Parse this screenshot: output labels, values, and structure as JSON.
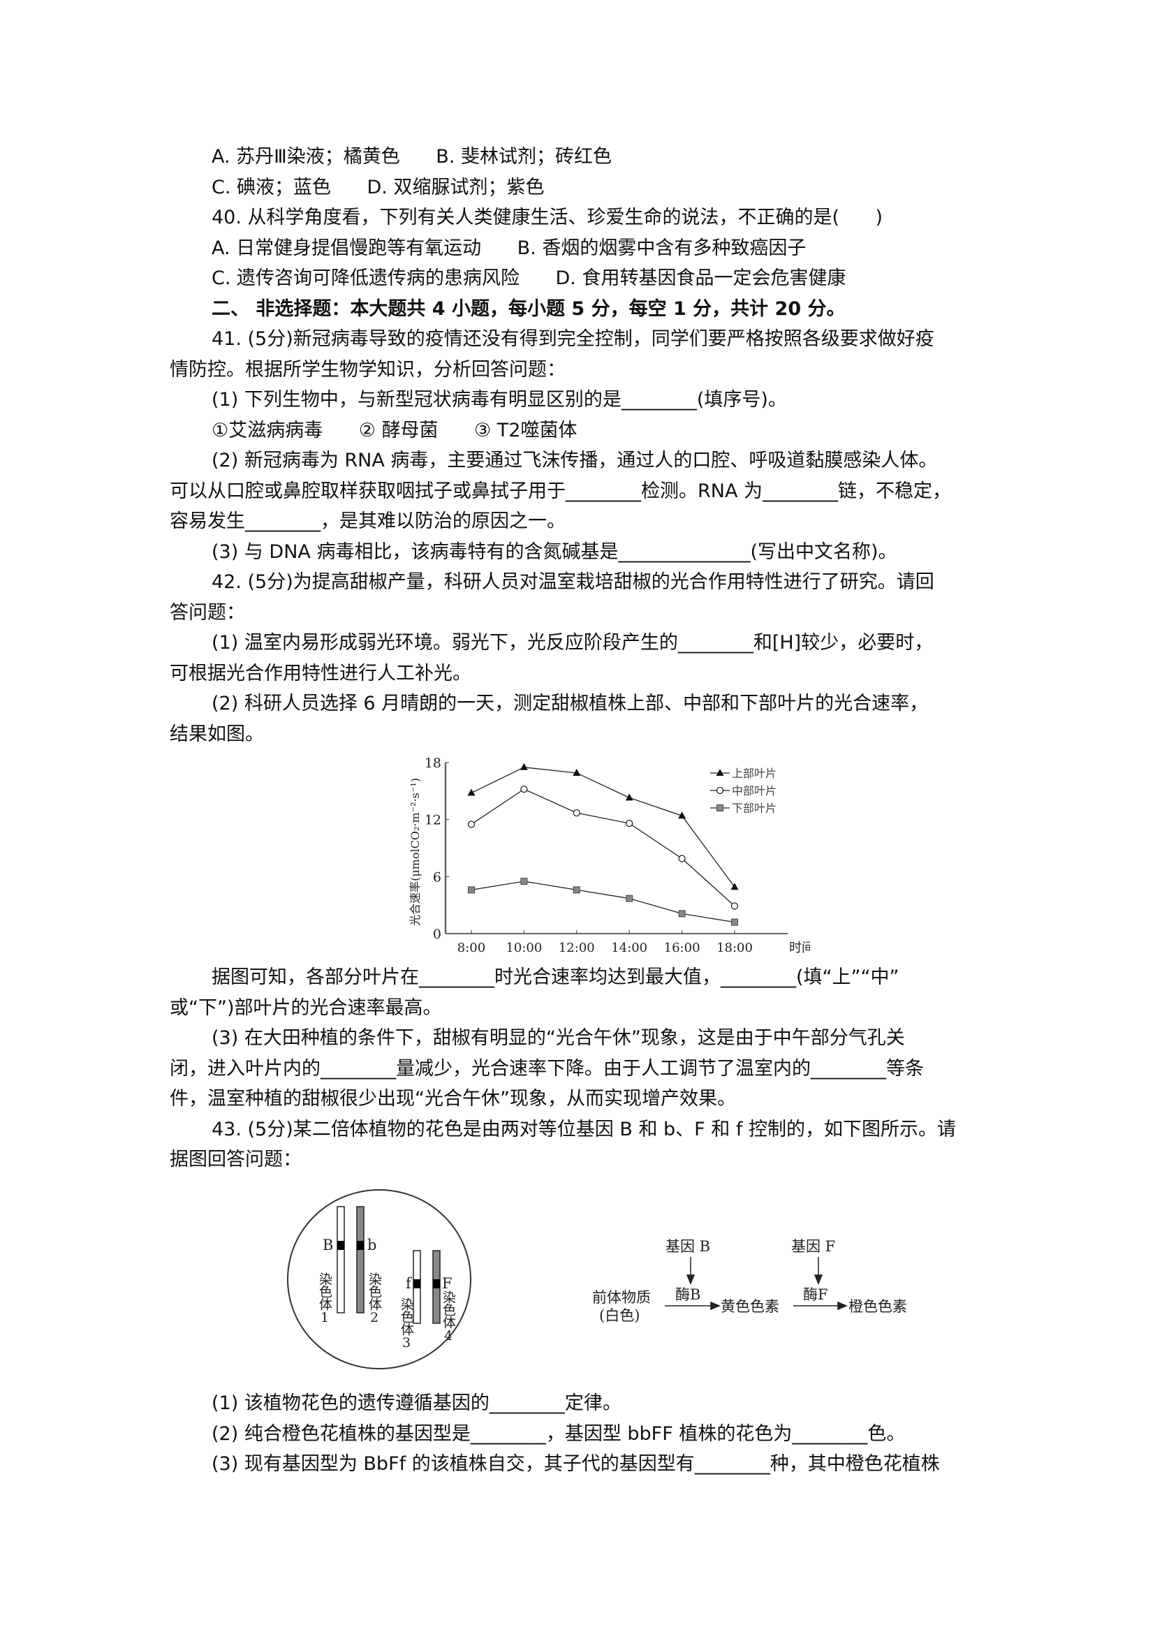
{
  "lines_block1": [
    {
      "text": "A. 苏丹Ⅲ染液；橘黄色      B. 斐林试剂；砖红色",
      "indent": true
    },
    {
      "text": "C. 碘液；蓝色      D. 双缩脲试剂；紫色",
      "indent": true
    },
    {
      "text": "40. 从科学角度看，下列有关人类健康生活、珍爱生命的说法，不正确的是(      )",
      "indent": true
    },
    {
      "text": "A. 日常健身提倡慢跑等有氧运动      B. 香烟的烟雾中含有多种致癌因子",
      "indent": true
    },
    {
      "text": "C. 遗传咨询可降低遗传病的患病风险      D. 食用转基因食品一定会危害健康",
      "indent": true
    },
    {
      "text": "二、 非选择题：本大题共 4 小题，每小题 5 分，每空 1 分，共计 20 分。",
      "indent": true,
      "bold": true
    },
    {
      "text": "41. (5分)新冠病毒导致的疫情还没有得到完全控制，同学们要严格按照各级要求做好疫",
      "indent": true
    },
    {
      "text": "情防控。根据所学生物学知识，分析回答问题：",
      "indent": false
    },
    {
      "text": "(1) 下列生物中，与新型冠状病毒有明显区别的是________(填序号)。",
      "indent": true
    },
    {
      "text": "①艾滋病病毒      ② 酵母菌      ③ T2噬菌体",
      "indent": true
    },
    {
      "text": "(2) 新冠病毒为 RNA 病毒，主要通过飞沫传播，通过人的口腔、呼吸道黏膜感染人体。",
      "indent": true
    },
    {
      "text": "可以从口腔或鼻腔取样获取咽拭子或鼻拭子用于________检测。RNA 为________链，不稳定，",
      "indent": false
    },
    {
      "text": "容易发生________，是其难以防治的原因之一。",
      "indent": false
    },
    {
      "text": "(3) 与 DNA 病毒相比，该病毒特有的含氮碱基是______________(写出中文名称)。",
      "indent": true
    },
    {
      "text": "42. (5分)为提高甜椒产量，科研人员对温室栽培甜椒的光合作用特性进行了研究。请回",
      "indent": true
    },
    {
      "text": "答问题：",
      "indent": false
    },
    {
      "text": "(1) 温室内易形成弱光环境。弱光下，光反应阶段产生的________和[H]较少，必要时，",
      "indent": true
    },
    {
      "text": "可根据光合作用特性进行人工补光。",
      "indent": false
    },
    {
      "text": "(2) 科研人员选择 6 月晴朗的一天，测定甜椒植株上部、中部和下部叶片的光合速率，",
      "indent": true
    },
    {
      "text": "结果如图。",
      "indent": false
    }
  ],
  "lines_block2": [
    {
      "text": "据图可知，各部分叶片在________时光合速率均达到最大值，________(填“上”“中”",
      "indent": true
    },
    {
      "text": "或“下”)部叶片的光合速率最高。",
      "indent": false
    },
    {
      "text": "(3) 在大田种植的条件下，甜椒有明显的“光合午休”现象，这是由于中午部分气孔关",
      "indent": true
    },
    {
      "text": "闭，进入叶片内的________量减少，光合速率下降。由于人工调节了温室内的________等条",
      "indent": false
    },
    {
      "text": "件，温室种植的甜椒很少出现“光合午休”现象，从而实现增产效果。",
      "indent": false
    },
    {
      "text": "43. (5分)某二倍体植物的花色是由两对等位基因 B 和 b、F 和 f 控制的，如下图所示。请",
      "indent": true
    },
    {
      "text": "据图回答问题：",
      "indent": false
    }
  ],
  "lines_block3": [
    {
      "text": "(1) 该植物花色的遗传遵循基因的________定律。",
      "indent": true
    },
    {
      "text": "(2) 纯合橙色花植株的基因型是________，基因型 bbFF 植株的花色为________色。",
      "indent": true
    },
    {
      "text": "(3) 现有基因型为 BbFf 的该植株自交，其子代的基因型有________种，其中橙色花植株",
      "indent": true
    }
  ],
  "chart_data": {
    "type": "line",
    "ylabel": "光合速率(μmolCO₂·m⁻²·s⁻¹)",
    "xlabel": "时间",
    "categories": [
      "8:00",
      "10:00",
      "12:00",
      "14:00",
      "16:00",
      "18:00"
    ],
    "yticks": [
      "0",
      "6",
      "12",
      "18"
    ],
    "ylim": [
      0,
      18
    ],
    "grid": false,
    "legend_position": "top-right",
    "series": [
      {
        "name": "上部叶片",
        "marker": "filled-triangle",
        "values": [
          14.8,
          17.5,
          16.9,
          14.3,
          12.4,
          4.9
        ]
      },
      {
        "name": "中部叶片",
        "marker": "open-circle",
        "values": [
          11.5,
          15.2,
          12.7,
          11.6,
          7.9,
          2.9
        ]
      },
      {
        "name": "下部叶片",
        "marker": "gray-square",
        "values": [
          4.6,
          5.5,
          4.6,
          3.7,
          2.1,
          1.2
        ]
      }
    ]
  },
  "diagram": {
    "chromosomes": [
      {
        "gene": "B",
        "label": "染色体1",
        "color": "#ffffff"
      },
      {
        "gene": "b",
        "label": "染色体2",
        "color": "#888888"
      },
      {
        "gene": "f",
        "label": "染色体3",
        "color": "#ffffff"
      },
      {
        "gene": "F",
        "label": "染色体4",
        "color": "#888888"
      }
    ],
    "pathway": {
      "gene_b": "基因 B",
      "gene_f": "基因 F",
      "enzyme_b": "酶B",
      "enzyme_f": "酶F",
      "precursor": "前体物质",
      "precursor_note": "(白色)",
      "yellow": "黄色色素",
      "orange": "橙色色素"
    }
  }
}
